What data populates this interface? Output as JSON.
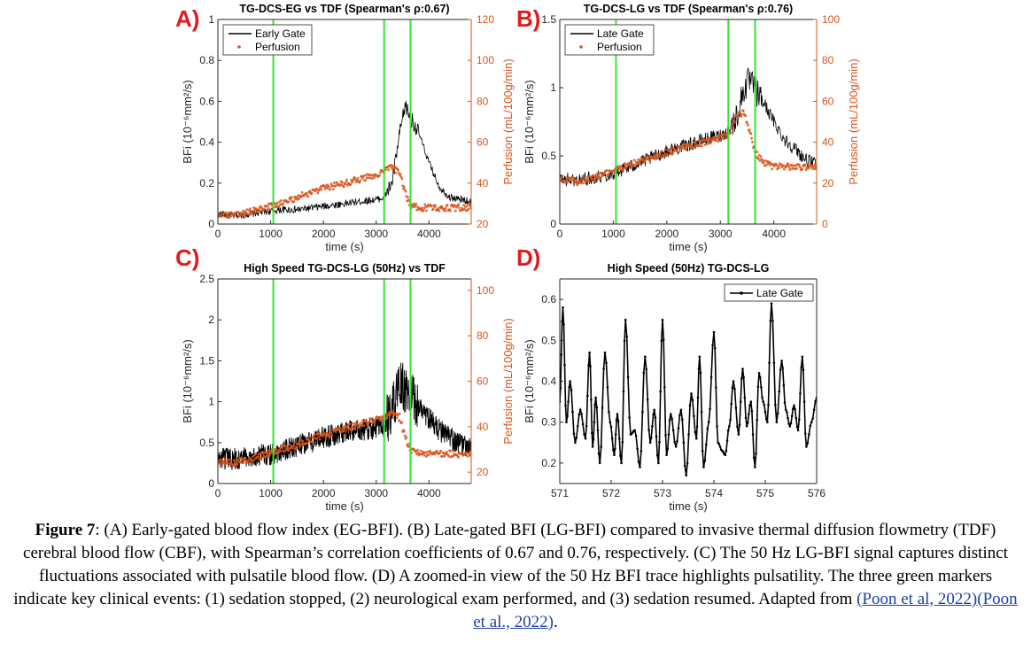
{
  "panels": [
    {
      "letter": "A)",
      "title": "TG-DCS-EG vs TDF (Spearman's ρ:0.67)",
      "ylabel": "BFi (10⁻⁶mm²/s)",
      "xlabel": "time (s)",
      "y2label": "Perfusion (mL/100g/min)",
      "xticks": [
        "0",
        "1000",
        "2000",
        "3000",
        "4000"
      ],
      "yticks": [
        "0",
        "0.2",
        "0.4",
        "0.6",
        "0.8",
        "1"
      ],
      "y2ticks": [
        "20",
        "40",
        "60",
        "80",
        "100",
        "120"
      ],
      "legend": [
        "Early Gate",
        "Perfusion"
      ]
    },
    {
      "letter": "B)",
      "title": "TG-DCS-LG vs TDF (Spearman's ρ:0.76)",
      "ylabel": "BFi (10⁻⁶mm²/s)",
      "xlabel": "time (s)",
      "y2label": "Perfusion (mL/100g/min)",
      "xticks": [
        "0",
        "1000",
        "2000",
        "3000",
        "4000"
      ],
      "yticks": [
        "0",
        "0.5",
        "1",
        "1.5"
      ],
      "y2ticks": [
        "0",
        "20",
        "40",
        "60",
        "80",
        "100"
      ],
      "legend": [
        "Late Gate",
        "Perfusion"
      ]
    },
    {
      "letter": "C)",
      "title": "High Speed TG-DCS-LG (50Hz) vs TDF",
      "ylabel": "BFi (10⁻⁶mm²/s)",
      "xlabel": "time (s)",
      "y2label": "Perfusion (mL/100g/min)",
      "xticks": [
        "0",
        "1000",
        "2000",
        "3000",
        "4000"
      ],
      "yticks": [
        "0",
        "0.5",
        "1",
        "1.5",
        "2",
        "2.5"
      ],
      "y2ticks": [
        "20",
        "40",
        "60",
        "80",
        "100"
      ]
    },
    {
      "letter": "D)",
      "title": "High Speed (50Hz) TG-DCS-LG",
      "ylabel": "BFi (10⁻⁶mm²/s)",
      "xlabel": "time (s)",
      "xticks": [
        "571",
        "572",
        "573",
        "574",
        "575",
        "576"
      ],
      "yticks": [
        "0.2",
        "0.3",
        "0.4",
        "0.5",
        "0.6"
      ],
      "legend": [
        "Late Gate"
      ]
    }
  ],
  "chart_data": [
    {
      "type": "line",
      "title": "TG-DCS-EG vs TDF (Spearman's ρ:0.67)",
      "xlabel": "time (s)",
      "ylabel": "BFi (10⁻⁶mm²/s)",
      "y2label": "Perfusion (mL/100g/min)",
      "xlim": [
        0,
        4800
      ],
      "ylim": [
        0,
        1
      ],
      "y2lim": [
        20,
        120
      ],
      "series": [
        {
          "name": "Early Gate",
          "axis": "left",
          "color": "#000000",
          "x": [
            0,
            300,
            600,
            900,
            1200,
            1500,
            1800,
            2100,
            2400,
            2700,
            3000,
            3150,
            3300,
            3450,
            3550,
            3650,
            3800,
            4000,
            4200,
            4400,
            4600,
            4800
          ],
          "y": [
            0.05,
            0.04,
            0.05,
            0.06,
            0.07,
            0.07,
            0.08,
            0.09,
            0.1,
            0.11,
            0.12,
            0.13,
            0.2,
            0.45,
            0.58,
            0.52,
            0.45,
            0.3,
            0.18,
            0.13,
            0.12,
            0.11
          ]
        },
        {
          "name": "Perfusion",
          "axis": "right",
          "color": "#d9541a",
          "x": [
            0,
            300,
            600,
            900,
            1200,
            1500,
            1800,
            2100,
            2400,
            2700,
            3000,
            3150,
            3300,
            3450,
            3550,
            3650,
            3800,
            4000,
            4400,
            4800
          ],
          "y": [
            25,
            24,
            26,
            28,
            30,
            33,
            36,
            38,
            40,
            42,
            44,
            46,
            48,
            45,
            35,
            29,
            28,
            28,
            28,
            28
          ]
        }
      ],
      "markers_x": [
        1050,
        3150,
        3650
      ]
    },
    {
      "type": "line",
      "title": "TG-DCS-LG vs TDF (Spearman's ρ:0.76)",
      "xlabel": "time (s)",
      "ylabel": "BFi (10⁻⁶mm²/s)",
      "y2label": "Perfusion (mL/100g/min)",
      "xlim": [
        0,
        4800
      ],
      "ylim": [
        0,
        1.5
      ],
      "y2lim": [
        0,
        100
      ],
      "series": [
        {
          "name": "Late Gate",
          "axis": "left",
          "color": "#000000",
          "x": [
            0,
            300,
            600,
            900,
            1200,
            1500,
            1800,
            2100,
            2400,
            2700,
            3000,
            3150,
            3300,
            3450,
            3550,
            3650,
            3800,
            4000,
            4200,
            4400,
            4600,
            4800
          ],
          "y": [
            0.33,
            0.32,
            0.34,
            0.36,
            0.4,
            0.45,
            0.5,
            0.55,
            0.58,
            0.62,
            0.65,
            0.68,
            0.78,
            1.0,
            1.05,
            0.98,
            0.9,
            0.75,
            0.62,
            0.55,
            0.47,
            0.43
          ]
        },
        {
          "name": "Perfusion",
          "axis": "right",
          "color": "#d9541a",
          "x": [
            0,
            300,
            600,
            900,
            1200,
            1500,
            1800,
            2100,
            2400,
            2700,
            3000,
            3150,
            3300,
            3450,
            3550,
            3650,
            3800,
            4000,
            4400,
            4800
          ],
          "y": [
            22,
            21,
            22,
            25,
            28,
            31,
            33,
            36,
            38,
            40,
            42,
            44,
            52,
            55,
            45,
            35,
            30,
            28,
            28,
            28
          ]
        }
      ],
      "markers_x": [
        1050,
        3150,
        3650
      ]
    },
    {
      "type": "line",
      "title": "High Speed TG-DCS-LG (50Hz) vs TDF",
      "xlabel": "time (s)",
      "ylabel": "BFi (10⁻⁶mm²/s)",
      "y2label": "Perfusion (mL/100g/min)",
      "xlim": [
        0,
        4800
      ],
      "ylim": [
        0,
        2.5
      ],
      "y2lim": [
        15,
        105
      ],
      "series": [
        {
          "name": "",
          "axis": "left",
          "color": "#000000",
          "x": [
            0,
            300,
            600,
            900,
            1200,
            1500,
            1800,
            2100,
            2400,
            2700,
            3000,
            3150,
            3300,
            3450,
            3550,
            3650,
            3800,
            4000,
            4200,
            4400,
            4600,
            4800
          ],
          "y": [
            0.3,
            0.3,
            0.32,
            0.35,
            0.4,
            0.46,
            0.52,
            0.58,
            0.62,
            0.66,
            0.68,
            0.7,
            0.9,
            1.2,
            1.15,
            1.05,
            0.95,
            0.8,
            0.65,
            0.55,
            0.48,
            0.42
          ]
        },
        {
          "name": "",
          "axis": "right",
          "color": "#d9541a",
          "x": [
            0,
            300,
            600,
            900,
            1200,
            1500,
            1800,
            2100,
            2400,
            2700,
            3000,
            3150,
            3300,
            3450,
            3550,
            3650,
            3800,
            4000,
            4400,
            4800
          ],
          "y": [
            25,
            24,
            26,
            28,
            30,
            32,
            35,
            37,
            39,
            41,
            43,
            44,
            46,
            44,
            35,
            30,
            29,
            28,
            28,
            28
          ]
        }
      ],
      "markers_x": [
        1050,
        3150,
        3650
      ]
    },
    {
      "type": "line",
      "title": "High Speed (50Hz) TG-DCS-LG",
      "xlabel": "time (s)",
      "ylabel": "BFi (10⁻⁶mm²/s)",
      "xlim": [
        571,
        576
      ],
      "ylim": [
        0.15,
        0.65
      ],
      "series": [
        {
          "name": "Late Gate",
          "axis": "left",
          "color": "#000000",
          "x": [
            571.0,
            571.06,
            571.13,
            571.2,
            571.3,
            571.4,
            571.5,
            571.58,
            571.64,
            571.7,
            571.78,
            571.88,
            571.98,
            572.06,
            572.12,
            572.2,
            572.28,
            572.38,
            572.46,
            572.56,
            572.66,
            572.76,
            572.84,
            572.92,
            573.0,
            573.08,
            573.16,
            573.26,
            573.36,
            573.46,
            573.56,
            573.66,
            573.72,
            573.8,
            573.9,
            574.0,
            574.08,
            574.16,
            574.22,
            574.3,
            574.38,
            574.48,
            574.56,
            574.64,
            574.72,
            574.8,
            574.88,
            574.96,
            575.04,
            575.12,
            575.22,
            575.32,
            575.4,
            575.48,
            575.56,
            575.64,
            575.72,
            575.8,
            575.9,
            576.0
          ],
          "y": [
            0.35,
            0.58,
            0.3,
            0.4,
            0.25,
            0.33,
            0.26,
            0.47,
            0.24,
            0.36,
            0.2,
            0.47,
            0.3,
            0.22,
            0.32,
            0.2,
            0.55,
            0.27,
            0.28,
            0.19,
            0.46,
            0.25,
            0.33,
            0.2,
            0.55,
            0.22,
            0.32,
            0.24,
            0.33,
            0.17,
            0.37,
            0.26,
            0.46,
            0.19,
            0.3,
            0.52,
            0.25,
            0.23,
            0.22,
            0.29,
            0.4,
            0.27,
            0.43,
            0.29,
            0.35,
            0.19,
            0.42,
            0.35,
            0.3,
            0.59,
            0.3,
            0.45,
            0.33,
            0.29,
            0.34,
            0.28,
            0.46,
            0.24,
            0.3,
            0.36
          ]
        }
      ]
    }
  ],
  "caption": {
    "label": "Figure 7",
    "text": ": (A) Early-gated blood flow index (EG-BFI). (B) Late-gated BFI (LG-BFI) compared to invasive thermal diffusion flowmetry (TDF) cerebral blood flow (CBF), with Spearman’s correlation coefficients of 0.67 and 0.76, respectively. (C) The 50 Hz LG-BFI signal captures distinct fluctuations associated with pulsatile blood flow. (D) A zoomed-in view of the 50 Hz BFI trace highlights pulsatility. The three green markers indicate key clinical events: (1) sedation stopped, (2) neurological exam performed, and (3) sedation resumed. Adapted from ",
    "ref1": "(Poon et al, 2022)",
    "ref2": "(Poon et al., 2022)",
    "end": "."
  },
  "colors": {
    "letter": "#e01b1b",
    "bfi": "#000000",
    "perfusion": "#d9541a",
    "marker": "#33e633"
  }
}
